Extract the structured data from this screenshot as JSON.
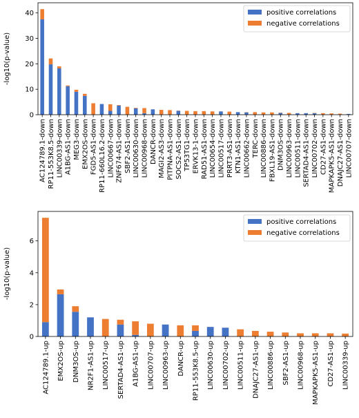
{
  "chart_data": [
    {
      "type": "bar",
      "stacked": true,
      "ylabel": "-log10(p-value)",
      "ylim": [
        0,
        44
      ],
      "yticks": [
        0,
        10,
        20,
        30,
        40
      ],
      "legend": {
        "placement": "top-right",
        "entries": [
          "positive correlations",
          "negative correlations"
        ]
      },
      "colors": {
        "positive": "#4472C4",
        "negative": "#ED7D31"
      },
      "categories": [
        "AC124789.1-down",
        "RP11-553K8.5-down",
        "LINC00339-down",
        "A1BG-AS1-down",
        "MEG3-down",
        "EMX2OS-down",
        "FGD5-AS1-down",
        "RP11-660L16.2-down",
        "LINC00667-down",
        "ZNF674-AS1-down",
        "SBF2-AS1-down",
        "LINC00630-down",
        "LINC00968-down",
        "DANCR-down",
        "MAGI2-AS3-down",
        "PITPNA-AS1-down",
        "SOCS2-AS1-down",
        "TP53TG1-down",
        "ERVK13-1-down",
        "RAD51-AS1-down",
        "LINC00654-down",
        "LINC00517-down",
        "PRRT3-AS1-down",
        "KTN1-AS1-down",
        "LINC00662-down",
        "TERC-down",
        "LINC00886-down",
        "FBXL19-AS1-down",
        "DNM3OS-down",
        "LINC00963-down",
        "LINC00511-down",
        "SERTAD4-AS1-down",
        "LINC00702-down",
        "CD27-AS1-down",
        "MAPKAPK5-AS1-down",
        "DNAJC27-AS1-down",
        "LINC00707-down"
      ],
      "series": [
        {
          "name": "positive correlations",
          "values": [
            37.5,
            19.8,
            18.2,
            11.2,
            9.0,
            7.4,
            0,
            4.2,
            1.5,
            3.6,
            0,
            2.5,
            0.6,
            2.1,
            0,
            0,
            1.5,
            0,
            0,
            0,
            0,
            1.3,
            0,
            1.0,
            0.9,
            0,
            0,
            0,
            0.7,
            0,
            0.6,
            0.6,
            0.6,
            0,
            0,
            0,
            0.3
          ]
        },
        {
          "name": "negative correlations",
          "values": [
            4.0,
            2.3,
            0.8,
            0.3,
            0.8,
            0.8,
            4.5,
            0,
            2.6,
            0.2,
            3.1,
            0.2,
            2.0,
            0,
            1.9,
            1.8,
            0.1,
            1.5,
            1.4,
            1.4,
            1.3,
            0,
            1.2,
            0,
            0.1,
            1.0,
            0.9,
            0.9,
            0.1,
            0.7,
            0,
            0,
            0.1,
            0.6,
            0.5,
            0.4,
            0
          ]
        }
      ]
    },
    {
      "type": "bar",
      "stacked": true,
      "ylabel": "-log10(p-value)",
      "ylim": [
        0,
        7.85
      ],
      "yticks": [
        0,
        2,
        4,
        6
      ],
      "legend": {
        "placement": "top-right",
        "entries": [
          "positive correlations",
          "negative correlations"
        ]
      },
      "colors": {
        "positive": "#4472C4",
        "negative": "#ED7D31"
      },
      "categories": [
        "AC124789.1-up",
        "EMX2OS-up",
        "DNM3OS-up",
        "NR2F1-AS1-up",
        "LINC00517-up",
        "SERTAD4-AS1-up",
        "A1BG-AS1-up",
        "LINC00707-up",
        "LINC00963-up",
        "DANCR-up",
        "RP11-553K8.5-up",
        "LINC00630-up",
        "LINC00702-up",
        "LINC00511-up",
        "DNAJC27-AS1-up",
        "LINC00886-up",
        "SBF2-AS1-up",
        "LINC00968-up",
        "MAPKAPK5-AS1-up",
        "CD27-AS1-up",
        "LINC00339-up"
      ],
      "series": [
        {
          "name": "positive correlations",
          "values": [
            0.9,
            2.65,
            1.55,
            1.2,
            0,
            0.75,
            0.1,
            0,
            0.75,
            0,
            0.35,
            0.6,
            0.55,
            0,
            0,
            0,
            0,
            0,
            0,
            0,
            0
          ]
        },
        {
          "name": "negative correlations",
          "values": [
            6.55,
            0.3,
            0.35,
            0,
            1.1,
            0.3,
            0.85,
            0.8,
            0,
            0.7,
            0.35,
            0,
            0,
            0.45,
            0.35,
            0.3,
            0.25,
            0.2,
            0.2,
            0.2,
            0.18
          ]
        }
      ]
    }
  ]
}
